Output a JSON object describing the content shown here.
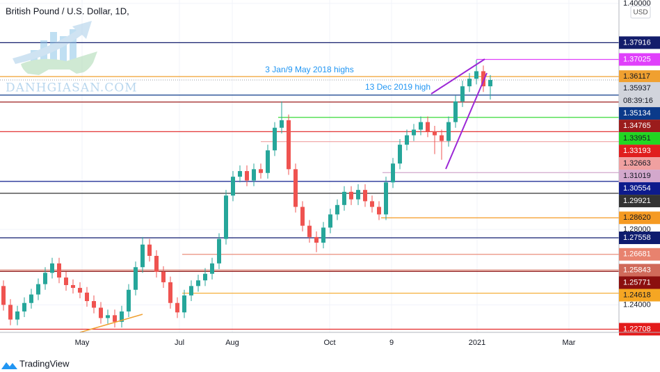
{
  "chart_data": {
    "type": "candlestick",
    "title": "British Pound / U.S. Dollar, 1D,",
    "currency": "USD",
    "watermark": "DANHGIASAN.COM",
    "up_color": "#26a69a",
    "down_color": "#ef5350",
    "open": [
      1.25,
      1.24,
      1.2322,
      1.2365,
      1.241,
      1.2455,
      1.251,
      1.257,
      1.262,
      1.2545,
      1.2505,
      1.249,
      1.2465,
      1.242,
      1.2385,
      1.233,
      1.2345,
      1.231,
      1.2365,
      1.248,
      1.26,
      1.272,
      1.266,
      1.2575,
      1.252,
      1.241,
      1.236,
      1.245,
      1.25,
      1.253,
      1.2565,
      1.262,
      1.275,
      1.298,
      1.308,
      1.311,
      1.306,
      1.312,
      1.31,
      1.322,
      1.334,
      1.338,
      1.312,
      1.292,
      1.282,
      1.276,
      1.273,
      1.281,
      1.288,
      1.293,
      1.3,
      1.296,
      1.301,
      1.295,
      1.292,
      1.288,
      1.305,
      1.315,
      1.325,
      1.33,
      1.333,
      1.337,
      1.332,
      1.33,
      1.327,
      1.337,
      1.348,
      1.356,
      1.36,
      1.364,
      1.356
    ],
    "high": [
      1.253,
      1.243,
      1.2395,
      1.244,
      1.2485,
      1.254,
      1.26,
      1.265,
      1.265,
      1.2575,
      1.2535,
      1.252,
      1.2495,
      1.245,
      1.2415,
      1.2375,
      1.2375,
      1.2395,
      1.251,
      1.263,
      1.276,
      1.275,
      1.269,
      1.2605,
      1.255,
      1.244,
      1.248,
      1.253,
      1.256,
      1.2595,
      1.265,
      1.278,
      1.301,
      1.311,
      1.314,
      1.314,
      1.315,
      1.315,
      1.325,
      1.337,
      1.348,
      1.341,
      1.315,
      1.295,
      1.285,
      1.279,
      1.284,
      1.291,
      1.296,
      1.303,
      1.303,
      1.304,
      1.304,
      1.298,
      1.295,
      1.308,
      1.318,
      1.328,
      1.333,
      1.336,
      1.34,
      1.34,
      1.335,
      1.333,
      1.34,
      1.351,
      1.359,
      1.363,
      1.37,
      1.367,
      1.362
    ],
    "low": [
      1.237,
      1.2292,
      1.2292,
      1.2335,
      1.238,
      1.2425,
      1.248,
      1.254,
      1.2515,
      1.2475,
      1.246,
      1.2435,
      1.239,
      1.2355,
      1.23,
      1.23,
      1.228,
      1.228,
      1.2335,
      1.245,
      1.257,
      1.263,
      1.2545,
      1.249,
      1.238,
      1.233,
      1.233,
      1.242,
      1.247,
      1.25,
      1.2535,
      1.259,
      1.272,
      1.295,
      1.305,
      1.303,
      1.303,
      1.307,
      1.307,
      1.319,
      1.331,
      1.309,
      1.289,
      1.279,
      1.273,
      1.268,
      1.27,
      1.278,
      1.285,
      1.29,
      1.293,
      1.293,
      1.292,
      1.289,
      1.285,
      1.285,
      1.302,
      1.312,
      1.322,
      1.327,
      1.33,
      1.329,
      1.32,
      1.317,
      1.324,
      1.334,
      1.345,
      1.353,
      1.357,
      1.353,
      1.349
    ],
    "close": [
      1.24,
      1.2322,
      1.2365,
      1.241,
      1.2455,
      1.251,
      1.257,
      1.262,
      1.2545,
      1.2505,
      1.249,
      1.2465,
      1.242,
      1.2385,
      1.233,
      1.2345,
      1.231,
      1.2365,
      1.248,
      1.26,
      1.272,
      1.266,
      1.2575,
      1.252,
      1.241,
      1.236,
      1.245,
      1.25,
      1.253,
      1.2565,
      1.262,
      1.275,
      1.298,
      1.308,
      1.311,
      1.306,
      1.312,
      1.31,
      1.322,
      1.334,
      1.338,
      1.312,
      1.292,
      1.282,
      1.276,
      1.273,
      1.281,
      1.288,
      1.293,
      1.3,
      1.296,
      1.301,
      1.295,
      1.292,
      1.288,
      1.305,
      1.315,
      1.325,
      1.33,
      1.333,
      1.337,
      1.332,
      1.33,
      1.327,
      1.337,
      1.348,
      1.356,
      1.36,
      1.364,
      1.356,
      1.35937
    ],
    "xlim": [
      -0.5,
      88.5
    ],
    "xticks": [
      {
        "value": 11.3,
        "label": "May"
      },
      {
        "value": 25.3,
        "label": "Jul"
      },
      {
        "value": 32.9,
        "label": "Aug"
      },
      {
        "value": 46.9,
        "label": "Oct"
      },
      {
        "value": 55.8,
        "label": "9"
      },
      {
        "value": 68.1,
        "label": "2021"
      },
      {
        "value": 81.3,
        "label": "Mar"
      }
    ],
    "ylim": [
      1.2254,
      1.4018
    ],
    "yticks": [
      {
        "value": 1.4,
        "label": "1.40000"
      },
      {
        "value": 1.28,
        "label": "1.28000"
      },
      {
        "value": 1.24,
        "label": "1.24000"
      }
    ],
    "grid": true,
    "levels": [
      {
        "value": 1.37916,
        "color": "#131d6b",
        "text_color": "#ffffff"
      },
      {
        "value": 1.37025,
        "color": "#e040fb",
        "text_color": "#ffffff"
      },
      {
        "value": 1.36117,
        "color": "#f0a030",
        "text_color": "#131722"
      },
      {
        "value": 1.35134,
        "color": "#0b3a8a",
        "text_color": "#ffffff"
      },
      {
        "value": 1.34765,
        "color": "#9b1c1c",
        "text_color": "#ffffff"
      },
      {
        "value": 1.33951,
        "color": "#22d622",
        "text_color": "#131722"
      },
      {
        "value": 1.33193,
        "color": "#e01e1e",
        "text_color": "#ffffff"
      },
      {
        "value": 1.32663,
        "color": "#f0a0a0",
        "text_color": "#131722"
      },
      {
        "value": 1.31019,
        "color": "#d3a8cc",
        "text_color": "#131722"
      },
      {
        "value": 1.30554,
        "color": "#0d1b8c",
        "text_color": "#ffffff"
      },
      {
        "value": 1.29921,
        "color": "#333333",
        "text_color": "#ffffff"
      },
      {
        "value": 1.2862,
        "label": "1.28620",
        "color": "#f59a23",
        "text_color": "#131722"
      },
      {
        "value": 1.27558,
        "color": "#0d1b6e",
        "text_color": "#ffffff"
      },
      {
        "value": 1.26681,
        "color": "#e8826e",
        "text_color": "#ffffff"
      },
      {
        "value": 1.25843,
        "color": "#d06a5a",
        "text_color": "#ffffff"
      },
      {
        "value": 1.25771,
        "color": "#8b0f0f",
        "text_color": "#ffffff"
      },
      {
        "value": 1.24618,
        "color": "#f5a623",
        "text_color": "#131722"
      },
      {
        "value": 1.22708,
        "color": "#e31b1b",
        "text_color": "#ffffff"
      }
    ],
    "last_price": {
      "value": 1.35937,
      "countdown": "08:39:16",
      "color": "#d1d4dc",
      "text_color": "#131722"
    },
    "annotations": [
      "3 Jan/9 May 2018 highs",
      "13 Dec 2019 high"
    ]
  },
  "footer": {
    "brand": "TradingView"
  }
}
